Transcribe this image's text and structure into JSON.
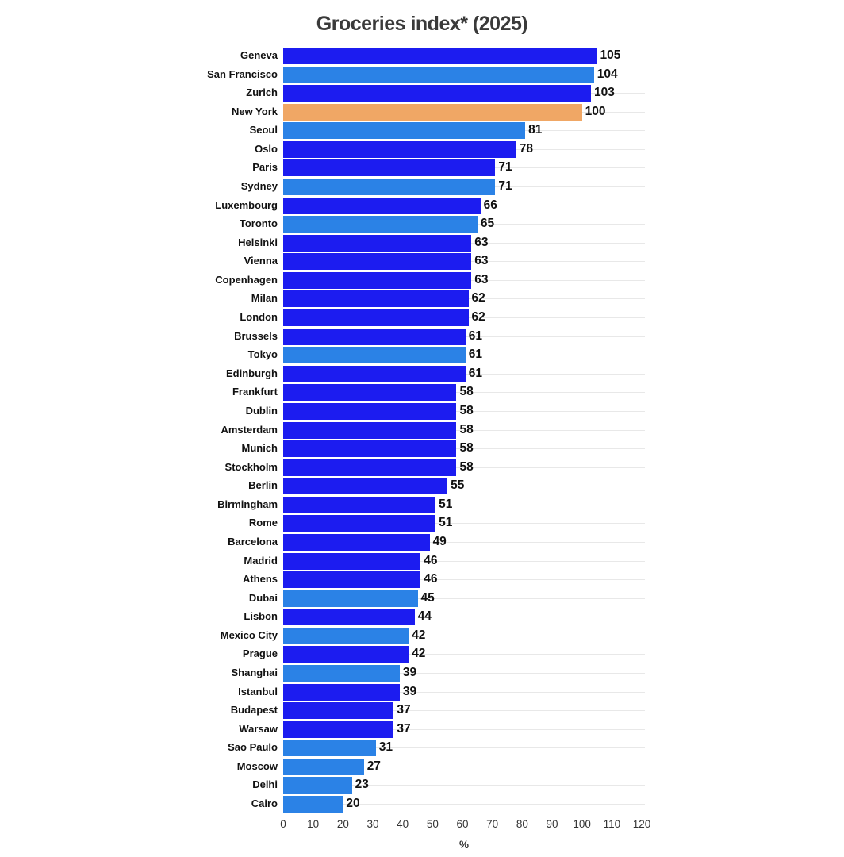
{
  "title": "Groceries index* (2025)",
  "chart_data": {
    "type": "bar",
    "orientation": "horizontal",
    "title": "Groceries index* (2025)",
    "xlabel": "%",
    "xlim": [
      0,
      120
    ],
    "x_ticks": [
      0,
      10,
      20,
      30,
      40,
      50,
      60,
      70,
      80,
      90,
      100,
      110,
      120
    ],
    "grid": "horizontal row lines, light gray, behind bars",
    "legend": "none",
    "value_labels": "bold, right of each bar end",
    "colors": {
      "europe": "#1c1cf0",
      "non_europe": "#2b82e6",
      "highlight_new_york": "#f0a765"
    },
    "bars": [
      {
        "city": "Geneva",
        "value": 105,
        "group": "europe"
      },
      {
        "city": "San Francisco",
        "value": 104,
        "group": "non_europe"
      },
      {
        "city": "Zurich",
        "value": 103,
        "group": "europe"
      },
      {
        "city": "New York",
        "value": 100,
        "group": "highlight_new_york"
      },
      {
        "city": "Seoul",
        "value": 81,
        "group": "non_europe"
      },
      {
        "city": "Oslo",
        "value": 78,
        "group": "europe"
      },
      {
        "city": "Paris",
        "value": 71,
        "group": "europe"
      },
      {
        "city": "Sydney",
        "value": 71,
        "group": "non_europe"
      },
      {
        "city": "Luxembourg",
        "value": 66,
        "group": "europe"
      },
      {
        "city": "Toronto",
        "value": 65,
        "group": "non_europe"
      },
      {
        "city": "Helsinki",
        "value": 63,
        "group": "europe"
      },
      {
        "city": "Vienna",
        "value": 63,
        "group": "europe"
      },
      {
        "city": "Copenhagen",
        "value": 63,
        "group": "europe"
      },
      {
        "city": "Milan",
        "value": 62,
        "group": "europe"
      },
      {
        "city": "London",
        "value": 62,
        "group": "europe"
      },
      {
        "city": "Brussels",
        "value": 61,
        "group": "europe"
      },
      {
        "city": "Tokyo",
        "value": 61,
        "group": "non_europe"
      },
      {
        "city": "Edinburgh",
        "value": 61,
        "group": "europe"
      },
      {
        "city": "Frankfurt",
        "value": 58,
        "group": "europe"
      },
      {
        "city": "Dublin",
        "value": 58,
        "group": "europe"
      },
      {
        "city": "Amsterdam",
        "value": 58,
        "group": "europe"
      },
      {
        "city": "Munich",
        "value": 58,
        "group": "europe"
      },
      {
        "city": "Stockholm",
        "value": 58,
        "group": "europe"
      },
      {
        "city": "Berlin",
        "value": 55,
        "group": "europe"
      },
      {
        "city": "Birmingham",
        "value": 51,
        "group": "europe"
      },
      {
        "city": "Rome",
        "value": 51,
        "group": "europe"
      },
      {
        "city": "Barcelona",
        "value": 49,
        "group": "europe"
      },
      {
        "city": "Madrid",
        "value": 46,
        "group": "europe"
      },
      {
        "city": "Athens",
        "value": 46,
        "group": "europe"
      },
      {
        "city": "Dubai",
        "value": 45,
        "group": "non_europe"
      },
      {
        "city": "Lisbon",
        "value": 44,
        "group": "europe"
      },
      {
        "city": "Mexico City",
        "value": 42,
        "group": "non_europe"
      },
      {
        "city": "Prague",
        "value": 42,
        "group": "europe"
      },
      {
        "city": "Shanghai",
        "value": 39,
        "group": "non_europe"
      },
      {
        "city": "Istanbul",
        "value": 39,
        "group": "europe"
      },
      {
        "city": "Budapest",
        "value": 37,
        "group": "europe"
      },
      {
        "city": "Warsaw",
        "value": 37,
        "group": "europe"
      },
      {
        "city": "Sao Paulo",
        "value": 31,
        "group": "non_europe"
      },
      {
        "city": "Moscow",
        "value": 27,
        "group": "non_europe"
      },
      {
        "city": "Delhi",
        "value": 23,
        "group": "non_europe"
      },
      {
        "city": "Cairo",
        "value": 20,
        "group": "non_europe"
      }
    ]
  }
}
